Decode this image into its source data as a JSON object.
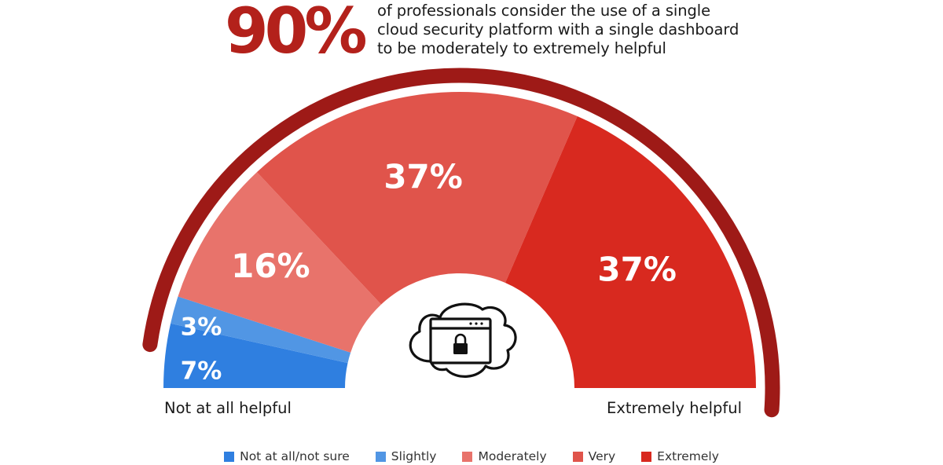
{
  "headline": {
    "stat": "90%",
    "text_lines": [
      "of professionals consider the use of a single",
      "cloud security platform with a single dashboard",
      "to be moderately to extremely helpful"
    ]
  },
  "colors": {
    "accent_dark": "#9e1a17",
    "stat": "#b3211b",
    "label_text": "#ffffff"
  },
  "chart_data": {
    "type": "pie",
    "variant": "half-donut",
    "categories": [
      "Not at all/not sure",
      "Slightly",
      "Moderately",
      "Very",
      "Extremely"
    ],
    "values": [
      7,
      3,
      16,
      37,
      37
    ],
    "data_labels": [
      "7%",
      "3%",
      "16%",
      "37%",
      "37%"
    ],
    "colors": [
      "#2f7fe0",
      "#5196e4",
      "#e8736b",
      "#e0544b",
      "#d8291f"
    ],
    "scale_labels": {
      "left": "Not at all helpful",
      "right": "Extremely helpful"
    },
    "center_icon": "cloud-lock-window-icon",
    "legend_position": "bottom"
  }
}
